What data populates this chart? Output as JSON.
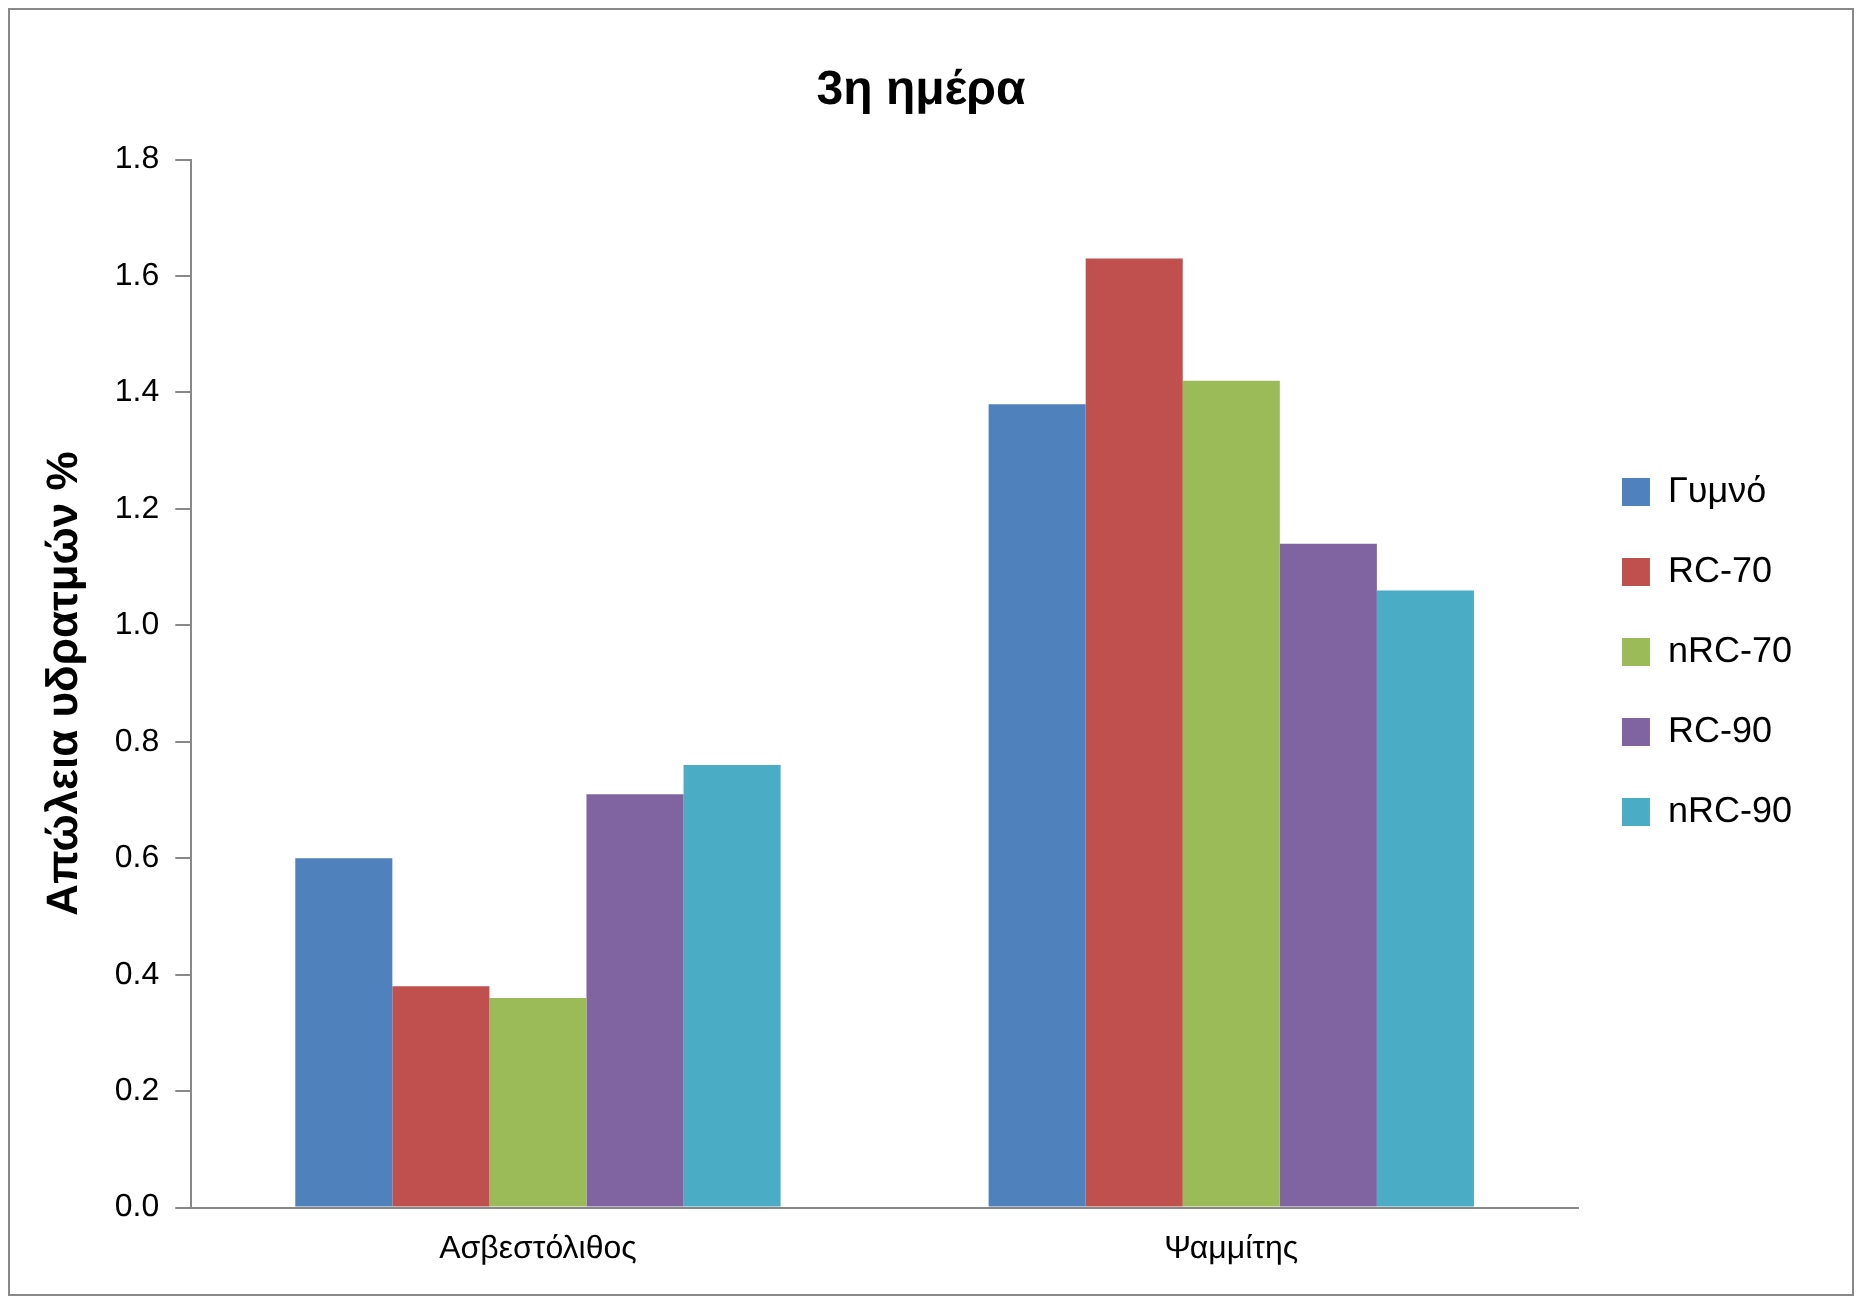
{
  "chart_data": {
    "type": "bar",
    "title": "3η ημέρα",
    "ylabel": "Απώλεια υδρατμών %",
    "categories": [
      "Ασβεστόλιθος",
      "Ψαμμίτης"
    ],
    "series": [
      {
        "name": "Γυμνό",
        "color": "#4f81bd",
        "values": [
          0.6,
          1.38
        ]
      },
      {
        "name": "RC-70",
        "color": "#c0504d",
        "values": [
          0.38,
          1.63
        ]
      },
      {
        "name": "nRC-70",
        "color": "#9bbb59",
        "values": [
          0.36,
          1.42
        ]
      },
      {
        "name": "RC-90",
        "color": "#8064a2",
        "values": [
          0.71,
          1.14
        ]
      },
      {
        "name": "nRC-90",
        "color": "#4bacc6",
        "values": [
          0.76,
          1.06
        ]
      }
    ],
    "ylim": [
      0,
      1.8
    ],
    "yticks": [
      {
        "value": 0,
        "label": "0.0"
      },
      0.2,
      0.4,
      0.6,
      0.8,
      {
        "value": 1,
        "label": "1.0"
      },
      1.2,
      1.4,
      1.6,
      1.8
    ],
    "grid": false,
    "legend": "right"
  }
}
